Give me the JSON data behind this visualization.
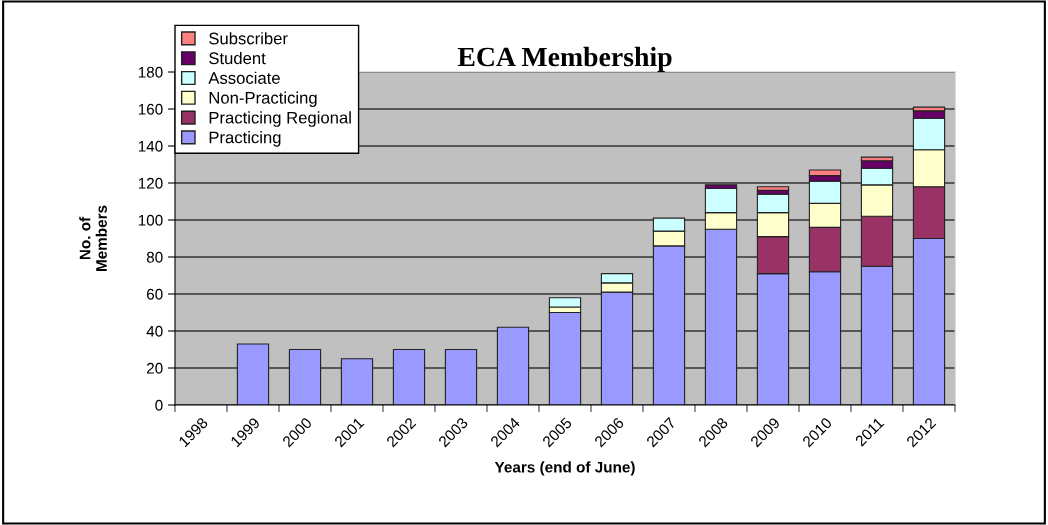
{
  "chart_data": {
    "type": "bar",
    "title": "ECA Membership",
    "xlabel": "Years (end of June)",
    "ylabel": "No. of\nMembers",
    "categories": [
      "1998",
      "1999",
      "2000",
      "2001",
      "2002",
      "2003",
      "2004",
      "2005",
      "2006",
      "2007",
      "2008",
      "2009",
      "2010",
      "2011",
      "2012"
    ],
    "stacked": true,
    "series": [
      {
        "name": "Practicing",
        "color": "#9999ff",
        "values": [
          null,
          33,
          30,
          25,
          30,
          30,
          42,
          50,
          61,
          86,
          95,
          71,
          72,
          75,
          90
        ]
      },
      {
        "name": "Practicing Regional",
        "color": "#993366",
        "values": [
          null,
          null,
          null,
          null,
          null,
          null,
          null,
          null,
          null,
          null,
          null,
          20,
          24,
          27,
          28
        ]
      },
      {
        "name": "Non-Practicing",
        "color": "#ffffcc",
        "values": [
          null,
          null,
          null,
          null,
          null,
          null,
          null,
          3,
          5,
          8,
          9,
          13,
          13,
          17,
          20
        ]
      },
      {
        "name": "Associate",
        "color": "#ccffff",
        "values": [
          null,
          null,
          null,
          null,
          null,
          null,
          null,
          5,
          5,
          7,
          13,
          10,
          12,
          9,
          17
        ]
      },
      {
        "name": "Student",
        "color": "#660066",
        "values": [
          null,
          null,
          null,
          null,
          null,
          null,
          null,
          null,
          null,
          null,
          2,
          2,
          3,
          4,
          4
        ]
      },
      {
        "name": "Subscriber",
        "color": "#ff8080",
        "values": [
          null,
          null,
          null,
          null,
          null,
          null,
          null,
          null,
          null,
          null,
          null,
          2,
          3,
          2,
          2
        ]
      }
    ],
    "ylim": [
      0,
      180
    ],
    "yticks": [
      0,
      20,
      40,
      60,
      80,
      100,
      120,
      140,
      160,
      180
    ],
    "grid": "y",
    "legend": "top left"
  }
}
